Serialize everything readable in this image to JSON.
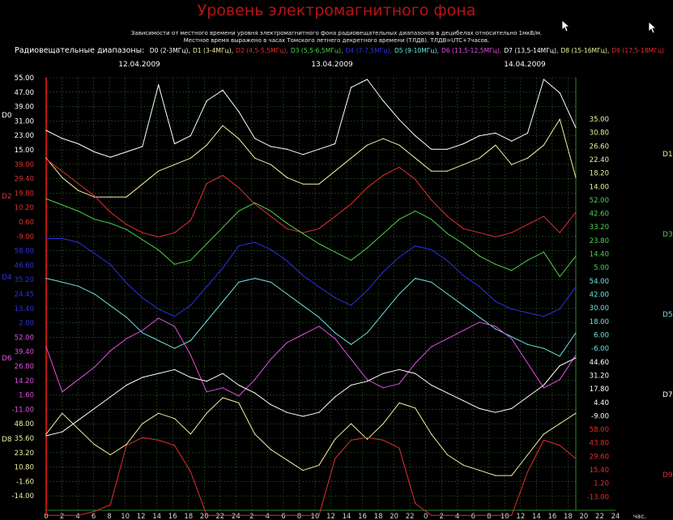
{
  "title": "Уровень электромагнитного фона",
  "subtitle_1": "Зависимости от местного времени уровня электромагнитного фона радиовещательных диапазонов в децибелах относительно 1мкВ/м.",
  "subtitle_2": "Местное время выражено в часах Томского летнего декретного времени (ТЛДВ). ТЛДВ=UTC+7часов.",
  "legend_label": "Радиовещательные диапазоны:",
  "legend": [
    {
      "label": "D0 (2-3МГц),",
      "color": "#ffffff"
    },
    {
      "label": "D1 (3-4МГц),",
      "color": "#f0f0a0"
    },
    {
      "label": "D2 (4,5-5,5МГц),",
      "color": "#e03030"
    },
    {
      "label": "D3 (5,5-6,5МГц),",
      "color": "#50d050"
    },
    {
      "label": "D4 (7-7,5МГц),",
      "color": "#3030e0"
    },
    {
      "label": "D5 (9-10МГц),",
      "color": "#70e0e0"
    },
    {
      "label": "D6 (11,5-12,5МГц),",
      "color": "#e050e0"
    },
    {
      "label": "D7 (13,5-14МГц),",
      "color": "#ffffff"
    },
    {
      "label": "D8 (15-16МГц),",
      "color": "#f0f0a0"
    },
    {
      "label": "D9 (17,5-18МГц)",
      "color": "#e03030"
    }
  ],
  "chart_data": {
    "type": "line",
    "dates": [
      "12.04.2009",
      "13.04.2009",
      "14.04.2009"
    ],
    "x_ticks": [
      "0",
      "2",
      "4",
      "6",
      "8",
      "10",
      "12",
      "14",
      "16",
      "18",
      "20",
      "22",
      "24",
      "2",
      "4",
      "6",
      "8",
      "10",
      "12",
      "14",
      "16",
      "18",
      "20",
      "22",
      "0",
      "2",
      "4",
      "6",
      "8",
      "10",
      "12",
      "14",
      "16",
      "18",
      "20",
      "22",
      "24"
    ],
    "x_unit": "час.",
    "left_axis_ticks": [
      {
        "v": "55.00",
        "c": "#ffffff"
      },
      {
        "v": "47.00",
        "c": "#ffffff"
      },
      {
        "v": "39.00",
        "c": "#ffffff"
      },
      {
        "v": "31.00",
        "c": "#ffffff"
      },
      {
        "v": "23.00",
        "c": "#ffffff"
      },
      {
        "v": "15.00",
        "c": "#ffffff"
      },
      {
        "v": "39.00",
        "c": "#e03030"
      },
      {
        "v": "29.40",
        "c": "#e03030"
      },
      {
        "v": "19.80",
        "c": "#e03030"
      },
      {
        "v": "10.20",
        "c": "#e03030"
      },
      {
        "v": "0.60",
        "c": "#e03030"
      },
      {
        "v": "-9.00",
        "c": "#e03030"
      },
      {
        "v": "58.00",
        "c": "#3030e0"
      },
      {
        "v": "46.60",
        "c": "#3030e0"
      },
      {
        "v": "35.20",
        "c": "#3030e0"
      },
      {
        "v": "24.45",
        "c": "#3030e0"
      },
      {
        "v": "13.40",
        "c": "#3030e0"
      },
      {
        "v": "2.00",
        "c": "#3030e0"
      },
      {
        "v": "52.00",
        "c": "#e050e0"
      },
      {
        "v": "39.40",
        "c": "#e050e0"
      },
      {
        "v": "26.80",
        "c": "#e050e0"
      },
      {
        "v": "14.20",
        "c": "#e050e0"
      },
      {
        "v": "1.60",
        "c": "#e050e0"
      },
      {
        "v": "-11.00",
        "c": "#e050e0"
      },
      {
        "v": "48.00",
        "c": "#f0f0a0"
      },
      {
        "v": "35.60",
        "c": "#f0f0a0"
      },
      {
        "v": "23.20",
        "c": "#f0f0a0"
      },
      {
        "v": "10.80",
        "c": "#f0f0a0"
      },
      {
        "v": "-1.60",
        "c": "#f0f0a0"
      },
      {
        "v": "-14.00",
        "c": "#f0f0a0"
      }
    ],
    "right_axis_ticks": [
      {
        "v": "35.00",
        "c": "#f0f0a0"
      },
      {
        "v": "30.80",
        "c": "#f0f0a0"
      },
      {
        "v": "26.60",
        "c": "#f0f0a0"
      },
      {
        "v": "22.40",
        "c": "#f0f0a0"
      },
      {
        "v": "18.20",
        "c": "#f0f0a0"
      },
      {
        "v": "14.00",
        "c": "#f0f0a0"
      },
      {
        "v": "52.00",
        "c": "#50d050"
      },
      {
        "v": "42.60",
        "c": "#50d050"
      },
      {
        "v": "33.20",
        "c": "#50d050"
      },
      {
        "v": "23.80",
        "c": "#50d050"
      },
      {
        "v": "14.40",
        "c": "#50d050"
      },
      {
        "v": "5.00",
        "c": "#50d050"
      },
      {
        "v": "54.00",
        "c": "#70e0e0"
      },
      {
        "v": "42.00",
        "c": "#70e0e0"
      },
      {
        "v": "30.00",
        "c": "#70e0e0"
      },
      {
        "v": "18.00",
        "c": "#70e0e0"
      },
      {
        "v": "6.00",
        "c": "#70e0e0"
      },
      {
        "v": "-6.00",
        "c": "#70e0e0"
      },
      {
        "v": "44.60",
        "c": "#ffffff"
      },
      {
        "v": "31.20",
        "c": "#ffffff"
      },
      {
        "v": "17.80",
        "c": "#ffffff"
      },
      {
        "v": "4.40",
        "c": "#ffffff"
      },
      {
        "v": "-9.00",
        "c": "#ffffff"
      },
      {
        "v": "58.00",
        "c": "#e03030"
      },
      {
        "v": "43.80",
        "c": "#e03030"
      },
      {
        "v": "29.60",
        "c": "#e03030"
      },
      {
        "v": "15.40",
        "c": "#e03030"
      },
      {
        "v": "1.20",
        "c": "#e03030"
      },
      {
        "v": "-13.00",
        "c": "#e03030"
      }
    ],
    "left_band_labels": [
      {
        "name": "D0",
        "c": "#ffffff"
      },
      {
        "name": "D2",
        "c": "#e03030"
      },
      {
        "name": "D4",
        "c": "#3030e0"
      },
      {
        "name": "D6",
        "c": "#e050e0"
      },
      {
        "name": "D8",
        "c": "#f0f0a0"
      }
    ],
    "right_band_labels": [
      {
        "name": "D1",
        "c": "#f0f0a0"
      },
      {
        "name": "D3",
        "c": "#50d050"
      },
      {
        "name": "D5",
        "c": "#70e0e0"
      },
      {
        "name": "D7",
        "c": "#ffffff"
      },
      {
        "name": "D9",
        "c": "#e03030"
      }
    ],
    "x": [
      0,
      2,
      4,
      6,
      8,
      10,
      12,
      14,
      16,
      18,
      20,
      22,
      24,
      26,
      28,
      30,
      32,
      34,
      36,
      38,
      40,
      42,
      44,
      46,
      48,
      50,
      52,
      54,
      56,
      58,
      60,
      62,
      64,
      66
    ],
    "series": [
      {
        "name": "D0",
        "color": "#ffffff",
        "axis": "left",
        "values": [
          31,
          28,
          26,
          23,
          21,
          23,
          25,
          48,
          26,
          29,
          42,
          46,
          38,
          28,
          25,
          24,
          22,
          24,
          26,
          47,
          50,
          42,
          35,
          29,
          24,
          24,
          26,
          29,
          30,
          27,
          30,
          50,
          45,
          32
        ]
      },
      {
        "name": "D1",
        "color": "#f0f0a0",
        "axis": "right",
        "values": [
          28,
          25,
          23,
          22,
          22,
          22,
          24,
          26,
          27,
          28,
          30,
          33,
          31,
          28,
          27,
          25,
          24,
          24,
          26,
          28,
          30,
          31,
          30,
          28,
          26,
          26,
          27,
          28,
          30,
          27,
          28,
          30,
          34,
          25
        ]
      },
      {
        "name": "D2",
        "color": "#e03030",
        "axis": "left",
        "values": [
          38,
          32,
          26,
          20,
          12,
          6,
          2,
          0,
          2,
          8,
          26,
          30,
          24,
          16,
          10,
          4,
          2,
          4,
          10,
          16,
          24,
          30,
          34,
          28,
          18,
          10,
          4,
          2,
          0,
          2,
          6,
          10,
          2,
          12
        ]
      },
      {
        "name": "D3",
        "color": "#50d050",
        "axis": "right",
        "values": [
          50,
          47,
          44,
          40,
          38,
          35,
          30,
          25,
          18,
          20,
          28,
          36,
          44,
          48,
          44,
          38,
          33,
          28,
          24,
          20,
          26,
          33,
          40,
          44,
          40,
          33,
          28,
          22,
          18,
          15,
          20,
          24,
          12,
          22
        ]
      },
      {
        "name": "D4",
        "color": "#3030e0",
        "axis": "left",
        "values": [
          50,
          50,
          48,
          42,
          36,
          26,
          18,
          12,
          8,
          14,
          24,
          34,
          46,
          48,
          44,
          38,
          30,
          24,
          18,
          14,
          22,
          32,
          40,
          46,
          44,
          38,
          30,
          24,
          16,
          12,
          10,
          8,
          12,
          24
        ]
      },
      {
        "name": "D5",
        "color": "#70e0e0",
        "axis": "right",
        "values": [
          42,
          40,
          38,
          34,
          28,
          22,
          14,
          10,
          6,
          10,
          20,
          30,
          40,
          42,
          40,
          34,
          28,
          22,
          14,
          8,
          14,
          24,
          34,
          42,
          40,
          34,
          28,
          22,
          16,
          12,
          8,
          6,
          2,
          14
        ]
      },
      {
        "name": "D6",
        "color": "#e050e0",
        "axis": "left",
        "values": [
          30,
          8,
          14,
          20,
          28,
          34,
          38,
          44,
          40,
          26,
          8,
          10,
          6,
          14,
          24,
          32,
          36,
          40,
          34,
          24,
          14,
          10,
          12,
          22,
          30,
          34,
          38,
          42,
          40,
          34,
          22,
          10,
          14,
          26
        ]
      },
      {
        "name": "D7",
        "color": "#ffffff",
        "axis": "right",
        "values": [
          -6,
          -4,
          2,
          8,
          14,
          20,
          24,
          26,
          28,
          24,
          22,
          26,
          20,
          16,
          10,
          6,
          4,
          6,
          14,
          20,
          22,
          26,
          28,
          26,
          20,
          16,
          12,
          8,
          6,
          8,
          14,
          20,
          30,
          34
        ]
      },
      {
        "name": "D8",
        "color": "#f0f0a0",
        "axis": "left",
        "values": [
          30,
          38,
          32,
          26,
          22,
          26,
          34,
          38,
          36,
          30,
          38,
          44,
          42,
          30,
          24,
          20,
          16,
          18,
          28,
          34,
          28,
          34,
          42,
          40,
          30,
          22,
          18,
          16,
          14,
          14,
          22,
          30,
          34,
          38
        ]
      },
      {
        "name": "D9",
        "color": "#e03030",
        "axis": "right",
        "values": [
          -13,
          -13,
          -13,
          -10,
          -5,
          40,
          46,
          44,
          40,
          20,
          -13,
          -13,
          -13,
          -13,
          -13,
          -13,
          -13,
          -13,
          30,
          44,
          46,
          44,
          38,
          -4,
          -13,
          -13,
          -13,
          -13,
          -13,
          -13,
          20,
          44,
          40,
          30
        ]
      }
    ]
  },
  "colors": {
    "background": "#000000",
    "grid": "#2a5a2a",
    "left_axis": "#c01010",
    "title": "#b81414"
  }
}
